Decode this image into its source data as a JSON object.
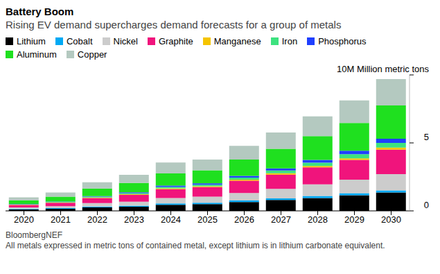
{
  "chart_data": {
    "type": "bar",
    "stacked": true,
    "title": "Battery Boom",
    "subtitle": "Rising EV demand supercharges demand forecasts for a group of metals",
    "categories": [
      "2020",
      "2021",
      "2022",
      "2023",
      "2024",
      "2025",
      "2026",
      "2027",
      "2028",
      "2029",
      "2030"
    ],
    "series": [
      {
        "name": "Lithium",
        "color": "#000000",
        "values": [
          0.1,
          0.15,
          0.25,
          0.3,
          0.45,
          0.5,
          0.65,
          0.8,
          0.95,
          1.15,
          1.35
        ]
      },
      {
        "name": "Cobalt",
        "color": "#00a9f4",
        "values": [
          0.04,
          0.05,
          0.07,
          0.08,
          0.1,
          0.1,
          0.12,
          0.12,
          0.15,
          0.15,
          0.15
        ]
      },
      {
        "name": "Nickel",
        "color": "#cccccc",
        "values": [
          0.12,
          0.15,
          0.25,
          0.3,
          0.4,
          0.45,
          0.55,
          0.7,
          0.85,
          1.0,
          1.2
        ]
      },
      {
        "name": "Graphite",
        "color": "#f0147c",
        "values": [
          0.18,
          0.25,
          0.38,
          0.5,
          0.65,
          0.7,
          0.9,
          1.05,
          1.25,
          1.45,
          1.8
        ]
      },
      {
        "name": "Manganese",
        "color": "#f5c400",
        "values": [
          0.02,
          0.02,
          0.03,
          0.04,
          0.06,
          0.06,
          0.08,
          0.1,
          0.1,
          0.12,
          0.15
        ]
      },
      {
        "name": "Iron",
        "color": "#3de27f",
        "values": [
          0.03,
          0.04,
          0.06,
          0.08,
          0.1,
          0.12,
          0.15,
          0.2,
          0.25,
          0.3,
          0.35
        ]
      },
      {
        "name": "Phosphorus",
        "color": "#1f3fff",
        "values": [
          0.02,
          0.03,
          0.05,
          0.07,
          0.1,
          0.1,
          0.13,
          0.15,
          0.2,
          0.25,
          0.3
        ]
      },
      {
        "name": "Aluminum",
        "color": "#1fe01f",
        "values": [
          0.27,
          0.36,
          0.55,
          0.68,
          0.9,
          0.95,
          1.2,
          1.45,
          1.75,
          2.05,
          2.45
        ]
      },
      {
        "name": "Copper",
        "color": "#b4c9c0",
        "values": [
          0.22,
          0.3,
          0.46,
          0.6,
          0.8,
          0.8,
          1.0,
          1.2,
          1.45,
          1.65,
          1.95
        ]
      }
    ],
    "ylim": [
      0,
      10
    ],
    "yticks": [
      0,
      5,
      {
        "value": 10,
        "label": "10M Million metric tons"
      }
    ],
    "grid": false,
    "legend": "top",
    "source": "BloombergNEF",
    "footnote": "All metals expressed in metric tons of contained metal, except lithium is in lithium carbonate equivalent."
  }
}
